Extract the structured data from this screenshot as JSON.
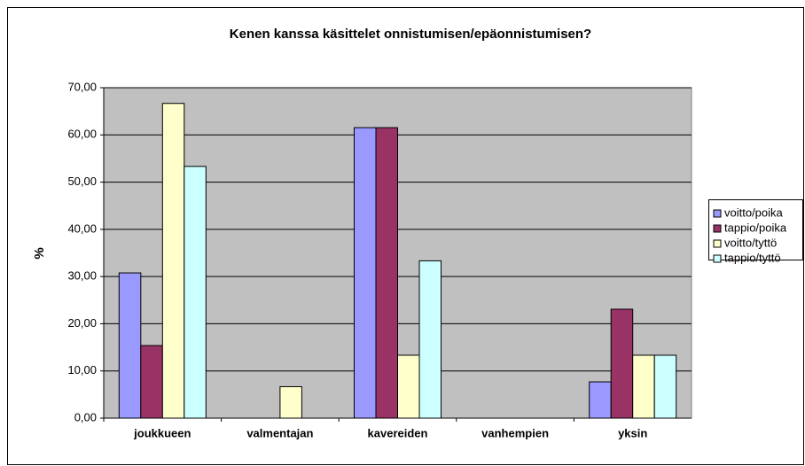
{
  "chart_data": {
    "type": "bar",
    "title": "Kenen kanssa käsittelet onnistumisen/epäonnistumisen?",
    "y_label": "%",
    "categories": [
      "joukkueen",
      "valmentajan",
      "kavereiden",
      "vanhempien",
      "yksin"
    ],
    "series": [
      {
        "name": "voitto/poika",
        "color": "#9999ff",
        "values": [
          30.77,
          0,
          61.54,
          0,
          7.69
        ]
      },
      {
        "name": "tappio/poika",
        "color": "#993366",
        "values": [
          15.38,
          0,
          61.54,
          0,
          23.08
        ]
      },
      {
        "name": "voitto/tyttö",
        "color": "#ffffcc",
        "values": [
          66.67,
          6.67,
          13.33,
          0,
          13.33
        ]
      },
      {
        "name": "tappio/tyttö",
        "color": "#ccffff",
        "values": [
          53.33,
          0,
          33.33,
          0,
          13.33
        ]
      }
    ],
    "ylim": [
      0,
      70
    ],
    "yticks": [
      {
        "value": 0,
        "label": "0,00"
      },
      {
        "value": 10,
        "label": "10,00"
      },
      {
        "value": 20,
        "label": "20,00"
      },
      {
        "value": 30,
        "label": "30,00"
      },
      {
        "value": 40,
        "label": "40,00"
      },
      {
        "value": 50,
        "label": "50,00"
      },
      {
        "value": 60,
        "label": "60,00"
      },
      {
        "value": 70,
        "label": "70,00"
      }
    ],
    "grid": true,
    "legend": "right"
  }
}
